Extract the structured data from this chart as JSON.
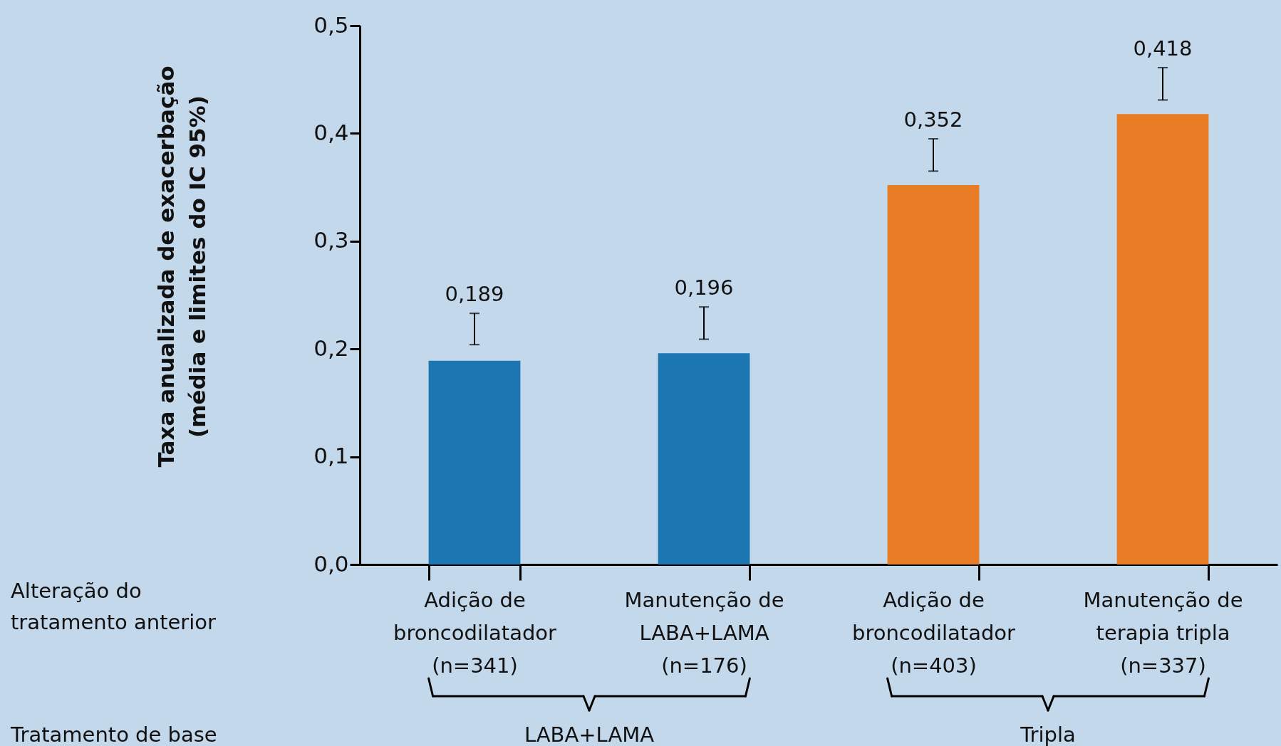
{
  "chart_data": {
    "type": "bar",
    "ylabel": "Taxa anualizada de exacerbação\n(média e limites do IC 95%)",
    "categories": [
      "Adição de\nbroncodilatador\n(n=341)",
      "Manutenção de\nLABA+LAMA\n(n=176)",
      "Adição de\nbroncodilatador\n(n=403)",
      "Manutenção de\nterapia tripla\n(n=337)"
    ],
    "values": [
      0.189,
      0.196,
      0.352,
      0.418
    ],
    "colors": [
      "#1c76b1",
      "#1c76b1",
      "#e87d25",
      "#e87d25"
    ],
    "errors": [
      [
        0.204,
        0.233
      ],
      [
        0.209,
        0.239
      ],
      [
        0.365,
        0.395
      ],
      [
        0.431,
        0.461
      ]
    ],
    "value_labels": [
      "0,189",
      "0,196",
      "0,352",
      "0,418"
    ],
    "ylim": [
      0,
      0.5
    ],
    "yticks": [
      {
        "value": 0,
        "label": "0,0"
      },
      {
        "value": 0.1,
        "label": "0,1"
      },
      {
        "value": 0.2,
        "label": "0,2"
      },
      {
        "value": 0.3,
        "label": "0,3"
      },
      {
        "value": 0.4,
        "label": "0,4"
      },
      {
        "value": 0.5,
        "label": "0,5"
      }
    ],
    "grid": false,
    "annotations": [
      "Alteração do\ntratamento anterior",
      "Tratamento de base",
      "LABA+LAMA",
      "Tripla"
    ]
  }
}
